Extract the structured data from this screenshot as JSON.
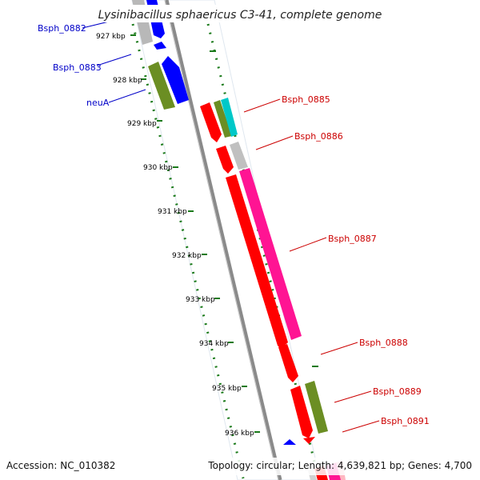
{
  "title": "Lysinibacillus sphaericus C3-41, complete genome",
  "footer": {
    "accession": "Accession: NC_010382",
    "topology": "Topology: circular; Length: 4,639,821 bp; Genes: 4,700"
  },
  "colors": {
    "backbone": "#8a8a8a",
    "tick": "#1a7a1a",
    "label_left": "#0000c8",
    "label_right": "#cc0000",
    "gene_red": "#ff0000",
    "gene_blue": "#0000ff",
    "gene_olive": "#6b8e23",
    "gene_pink": "#ff1493",
    "gene_gray": "#b8b8b8",
    "gene_cyan": "#00c8c8"
  },
  "ticks": [
    {
      "label": "927 kbp"
    },
    {
      "label": "928 kbp"
    },
    {
      "label": "929 kbp"
    },
    {
      "label": "930 kbp"
    },
    {
      "label": "931 kbp"
    },
    {
      "label": "932 kbp"
    },
    {
      "label": "933 kbp"
    },
    {
      "label": "934 kbp"
    },
    {
      "label": "935 kbp"
    },
    {
      "label": "936 kbp"
    }
  ],
  "genes_left": [
    {
      "name": "Bsph_0882"
    },
    {
      "name": "Bsph_0883"
    },
    {
      "name": "neuA"
    }
  ],
  "genes_right": [
    {
      "name": "Bsph_0885"
    },
    {
      "name": "Bsph_0886"
    },
    {
      "name": "Bsph_0887"
    },
    {
      "name": "Bsph_0888"
    },
    {
      "name": "Bsph_0889"
    },
    {
      "name": "Bsph_0891"
    }
  ]
}
